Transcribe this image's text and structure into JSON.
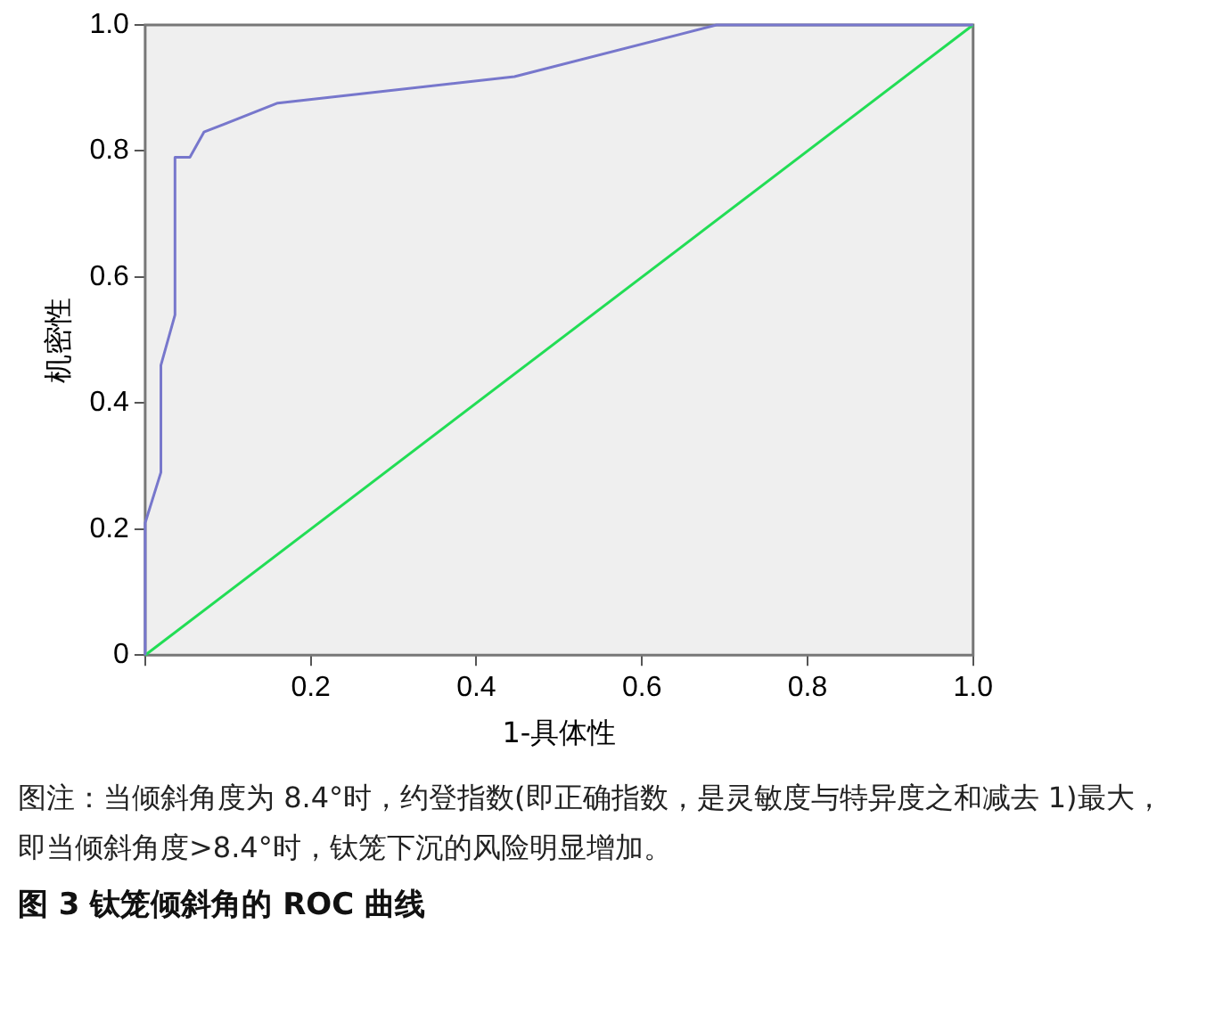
{
  "chart_data": {
    "type": "line",
    "title": "图 3   钛笼倾斜角的 ROC 曲线",
    "xlabel": "1-具体性",
    "ylabel": "机密性",
    "annotations": [
      "图注：当倾斜角度为 8.4°时，约登指数(即正确指数，是灵敏度与特异度之和减去 1)最大，即当倾斜角度>8.4°时，钛笼下沉的风险明显增加。"
    ],
    "series": [
      {
        "color": "#7777cc",
        "x": [
          0,
          0,
          0.019,
          0.019,
          0.036,
          0.036,
          0.054,
          0.071,
          0.16,
          0.446,
          0.69,
          1
        ],
        "values": [
          0,
          0.21,
          0.29,
          0.46,
          0.54,
          0.79,
          0.79,
          0.83,
          0.876,
          0.918,
          1,
          1
        ]
      },
      {
        "color": "#22dd55",
        "x": [
          0,
          1
        ],
        "values": [
          0,
          1
        ]
      }
    ],
    "xlim": [
      0,
      1
    ],
    "ylim": [
      0,
      1
    ],
    "xticks": [
      {
        "value": 0,
        "label": null
      },
      0.2,
      0.4,
      0.6,
      0.8,
      {
        "value": 1,
        "label": "1.0"
      }
    ],
    "yticks": [
      {
        "value": 0,
        "label": "0"
      },
      0.2,
      0.4,
      0.6,
      0.8,
      {
        "value": 1,
        "label": "1.0"
      }
    ],
    "grid": false,
    "legend": false,
    "marker": "none",
    "line_style": "solid"
  }
}
